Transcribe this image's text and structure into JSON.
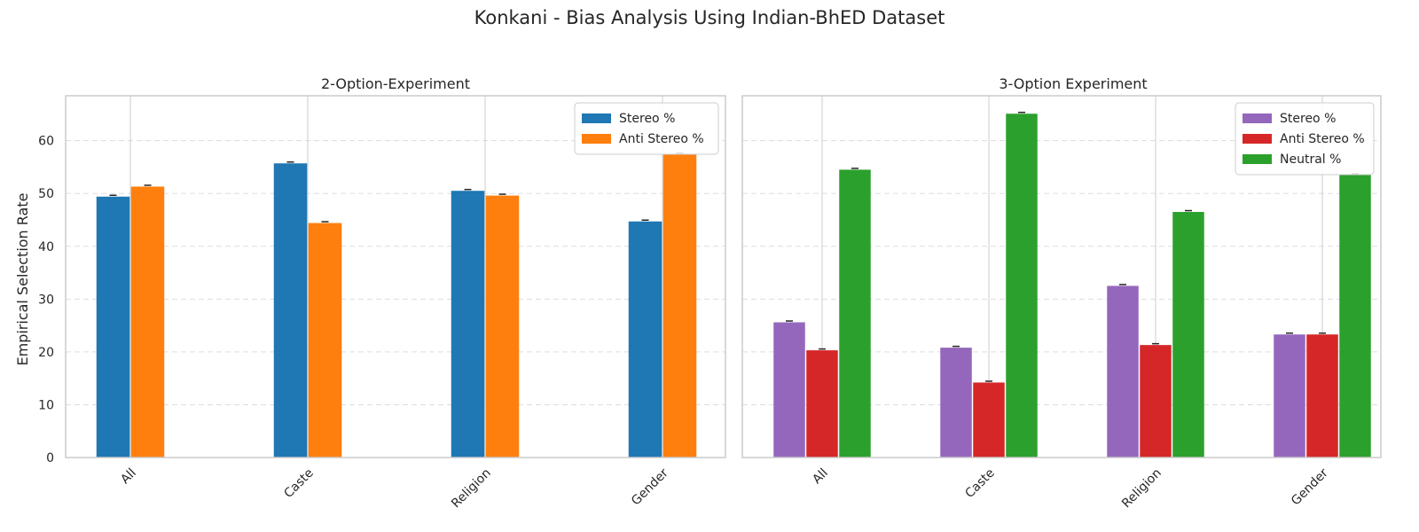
{
  "figure_title": "Konkani - Bias Analysis Using Indian-BhED Dataset",
  "chart_data": [
    {
      "type": "bar",
      "title": "2-Option-Experiment",
      "xlabel": "",
      "ylabel": "Empirical Selection Rate",
      "categories": [
        "All",
        "Caste",
        "Religion",
        "Gender"
      ],
      "series": [
        {
          "name": "Stereo %",
          "color": "#1f77b4",
          "values": [
            49.4,
            55.7,
            50.5,
            44.7
          ]
        },
        {
          "name": "Anti Stereo %",
          "color": "#ff7f0e",
          "values": [
            51.3,
            44.4,
            49.6,
            57.4
          ]
        }
      ],
      "ylim": [
        0,
        68.5
      ],
      "yticks": [
        "0",
        "10",
        "20",
        "30",
        "40",
        "50",
        "60"
      ],
      "grid": "y-dashed",
      "legend": "top-right",
      "error_bars": true
    },
    {
      "type": "bar",
      "title": "3-Option Experiment",
      "xlabel": "",
      "ylabel": "",
      "categories": [
        "All",
        "Caste",
        "Religion",
        "Gender"
      ],
      "series": [
        {
          "name": "Stereo %",
          "color": "#9467bd",
          "values": [
            25.6,
            20.8,
            32.5,
            23.3
          ]
        },
        {
          "name": "Anti Stereo %",
          "color": "#d62728",
          "values": [
            20.3,
            14.2,
            21.3,
            23.3
          ]
        },
        {
          "name": "Neutral %",
          "color": "#2ca02c",
          "values": [
            54.5,
            65.1,
            46.5,
            53.5
          ]
        }
      ],
      "ylim": [
        0,
        68.5
      ],
      "grid": "y-dashed",
      "legend": "top-right",
      "error_bars": true
    }
  ]
}
